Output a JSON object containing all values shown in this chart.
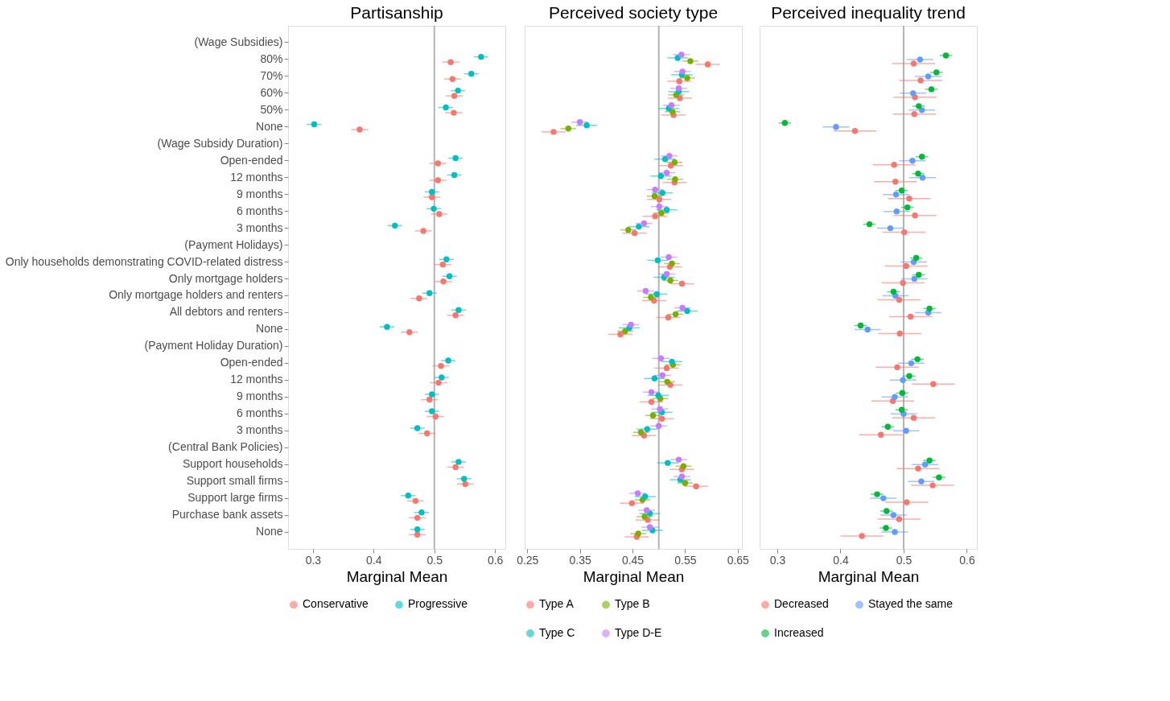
{
  "chart_data": [
    {
      "type": "scatter",
      "title": "Partisanship",
      "xlabel": "Marginal Mean",
      "orientation": "horizontal",
      "categories": [
        "(Wage Subsidies)",
        "80%",
        "70%",
        "60%",
        "50%",
        "None",
        "(Wage Subsidy Duration)",
        "Open-ended",
        "12 months",
        "9 months",
        "6 months",
        "3 months",
        "(Payment Holidays)",
        "Only households demonstrating COVID-related distress",
        "Only mortgage holders",
        "Only mortgage holders and renters",
        "All debtors and renters",
        "None",
        "(Payment Holiday Duration)",
        "Open-ended",
        "12 months",
        "9 months",
        "6 months",
        "3 months",
        "(Central Bank Policies)",
        "Support households",
        "Support small firms",
        "Support large firms",
        "Purchase bank assets",
        "None"
      ],
      "series": [
        {
          "name": "Conservative",
          "color": "#f8766d",
          "values": [
            null,
            0.527,
            0.53,
            0.533,
            0.532,
            0.377,
            null,
            0.506,
            0.506,
            0.496,
            0.508,
            0.482,
            null,
            0.514,
            0.515,
            0.475,
            0.535,
            0.459,
            null,
            0.511,
            0.507,
            0.492,
            0.502,
            0.488,
            null,
            0.535,
            0.551,
            0.469,
            0.472,
            0.472
          ],
          "errors": [
            null,
            0.014,
            0.014,
            0.014,
            0.014,
            0.014,
            null,
            0.014,
            0.014,
            0.014,
            0.014,
            0.014,
            null,
            0.014,
            0.014,
            0.014,
            0.014,
            0.014,
            null,
            0.014,
            0.014,
            0.014,
            0.014,
            0.014,
            null,
            0.014,
            0.014,
            0.014,
            0.014,
            0.014
          ]
        },
        {
          "name": "Progressive",
          "color": "#00bfc4",
          "values": [
            null,
            0.577,
            0.561,
            0.539,
            0.519,
            0.302,
            null,
            0.535,
            0.533,
            0.496,
            0.499,
            0.435,
            null,
            0.52,
            0.525,
            0.492,
            0.54,
            0.422,
            null,
            0.523,
            0.512,
            0.496,
            0.496,
            0.472,
            null,
            0.54,
            0.549,
            0.457,
            0.479,
            0.472
          ],
          "errors": [
            null,
            0.012,
            0.012,
            0.012,
            0.012,
            0.012,
            null,
            0.012,
            0.012,
            0.012,
            0.012,
            0.012,
            null,
            0.012,
            0.012,
            0.012,
            0.012,
            0.012,
            null,
            0.012,
            0.012,
            0.012,
            0.012,
            0.012,
            null,
            0.012,
            0.012,
            0.012,
            0.012,
            0.012
          ]
        }
      ],
      "xlim": [
        0.259,
        0.617
      ],
      "xticks": [
        0.3,
        0.4,
        0.5,
        0.6
      ],
      "ref_lines": [
        {
          "axis": "x",
          "value": 0.5,
          "color": "#b3b3b3"
        }
      ],
      "legend": "bottom"
    },
    {
      "type": "scatter",
      "title": "Perceived society type",
      "xlabel": "Marginal Mean",
      "orientation": "horizontal",
      "series": [
        {
          "name": "Type A",
          "color": "#f8766d",
          "values": [
            null,
            0.593,
            0.539,
            0.54,
            0.528,
            0.3,
            null,
            0.523,
            0.53,
            0.501,
            0.493,
            0.454,
            null,
            0.521,
            0.544,
            0.491,
            0.518,
            0.427,
            null,
            0.515,
            0.522,
            0.486,
            0.506,
            0.472,
            null,
            0.544,
            0.571,
            0.449,
            0.479,
            0.458
          ],
          "errors": [
            null,
            0.023,
            0.023,
            0.023,
            0.023,
            0.023,
            null,
            0.023,
            0.023,
            0.023,
            0.023,
            0.023,
            null,
            0.023,
            0.023,
            0.023,
            0.023,
            0.023,
            null,
            0.023,
            0.023,
            0.023,
            0.023,
            0.023,
            null,
            0.023,
            0.023,
            0.023,
            0.023,
            0.023
          ]
        },
        {
          "name": "Type B",
          "color": "#7cae00",
          "values": [
            null,
            0.56,
            0.554,
            0.533,
            0.526,
            0.328,
            null,
            0.53,
            0.531,
            0.492,
            0.505,
            0.442,
            null,
            0.525,
            0.522,
            0.485,
            0.532,
            0.436,
            null,
            0.527,
            0.516,
            0.503,
            0.489,
            0.466,
            null,
            0.547,
            0.55,
            0.469,
            0.473,
            0.461
          ],
          "errors": [
            null,
            0.015,
            0.015,
            0.015,
            0.015,
            0.015,
            null,
            0.015,
            0.015,
            0.015,
            0.015,
            0.015,
            null,
            0.015,
            0.015,
            0.015,
            0.015,
            0.015,
            null,
            0.015,
            0.015,
            0.015,
            0.015,
            0.015,
            null,
            0.015,
            0.015,
            0.015,
            0.015,
            0.015
          ]
        },
        {
          "name": "Type C",
          "color": "#00bfc4",
          "values": [
            null,
            0.536,
            0.544,
            0.538,
            0.519,
            0.363,
            null,
            0.512,
            0.504,
            0.507,
            0.515,
            0.462,
            null,
            0.498,
            0.51,
            0.496,
            0.554,
            0.444,
            null,
            0.525,
            0.492,
            0.499,
            0.506,
            0.478,
            null,
            0.517,
            0.541,
            0.474,
            0.483,
            0.488
          ],
          "errors": [
            null,
            0.02,
            0.02,
            0.02,
            0.02,
            0.02,
            null,
            0.02,
            0.02,
            0.02,
            0.02,
            0.02,
            null,
            0.02,
            0.02,
            0.02,
            0.02,
            0.02,
            null,
            0.02,
            0.02,
            0.02,
            0.02,
            0.02,
            null,
            0.02,
            0.02,
            0.02,
            0.02,
            0.02
          ]
        },
        {
          "name": "Type D-E",
          "color": "#c77cff",
          "values": [
            null,
            0.543,
            0.545,
            0.538,
            0.524,
            0.35,
            null,
            0.52,
            0.515,
            0.493,
            0.501,
            0.472,
            null,
            0.519,
            0.515,
            0.475,
            0.545,
            0.447,
            null,
            0.504,
            0.507,
            0.486,
            0.502,
            0.5,
            null,
            0.538,
            0.544,
            0.46,
            0.477,
            0.483
          ],
          "errors": [
            null,
            0.016,
            0.016,
            0.016,
            0.016,
            0.016,
            null,
            0.016,
            0.016,
            0.016,
            0.016,
            0.016,
            null,
            0.016,
            0.016,
            0.016,
            0.016,
            0.016,
            null,
            0.016,
            0.016,
            0.016,
            0.016,
            0.016,
            null,
            0.016,
            0.016,
            0.016,
            0.016,
            0.016
          ]
        }
      ],
      "xlim": [
        0.245,
        0.658
      ],
      "xticks": [
        0.25,
        0.35,
        0.45,
        0.55,
        0.65
      ],
      "ref_lines": [
        {
          "axis": "x",
          "value": 0.5,
          "color": "#b3b3b3"
        }
      ],
      "tick_labels": "x",
      "legend": "bottom"
    },
    {
      "type": "scatter",
      "title": "Perceived inequality trend",
      "xlabel": "Marginal Mean",
      "orientation": "horizontal",
      "series": [
        {
          "name": "Decreased",
          "color": "#f8766d",
          "values": [
            null,
            0.516,
            0.527,
            0.518,
            0.517,
            0.423,
            null,
            0.485,
            0.487,
            0.509,
            0.518,
            0.501,
            null,
            0.504,
            0.499,
            0.493,
            0.511,
            0.494,
            null,
            0.49,
            0.547,
            0.483,
            0.516,
            0.464,
            null,
            0.523,
            0.546,
            0.505,
            0.493,
            0.434
          ],
          "errors": [
            null,
            0.034,
            0.034,
            0.034,
            0.034,
            0.034,
            null,
            0.034,
            0.034,
            0.034,
            0.034,
            0.034,
            null,
            0.034,
            0.034,
            0.034,
            0.034,
            0.034,
            null,
            0.034,
            0.034,
            0.034,
            0.034,
            0.034,
            null,
            0.034,
            0.034,
            0.034,
            0.034,
            0.034
          ]
        },
        {
          "name": "Stayed the same",
          "color": "#619cff",
          "values": [
            null,
            0.526,
            0.539,
            0.515,
            0.529,
            0.393,
            null,
            0.514,
            0.53,
            0.488,
            0.489,
            0.479,
            null,
            0.516,
            0.517,
            0.487,
            0.539,
            0.443,
            null,
            0.512,
            0.499,
            0.486,
            0.5,
            0.504,
            null,
            0.534,
            0.528,
            0.468,
            0.484,
            0.486
          ],
          "errors": [
            null,
            0.021,
            0.021,
            0.021,
            0.021,
            0.021,
            null,
            0.021,
            0.021,
            0.021,
            0.021,
            0.021,
            null,
            0.021,
            0.021,
            0.021,
            0.021,
            0.021,
            null,
            0.021,
            0.021,
            0.021,
            0.021,
            0.021,
            null,
            0.021,
            0.021,
            0.021,
            0.021,
            0.021
          ]
        },
        {
          "name": "Increased",
          "color": "#00ba38",
          "values": [
            null,
            0.567,
            0.552,
            0.544,
            0.524,
            0.312,
            null,
            0.529,
            0.523,
            0.497,
            0.506,
            0.446,
            null,
            0.52,
            0.524,
            0.484,
            0.541,
            0.432,
            null,
            0.522,
            0.509,
            0.498,
            0.497,
            0.475,
            null,
            0.541,
            0.556,
            0.458,
            0.473,
            0.472
          ],
          "errors": [
            null,
            0.01,
            0.01,
            0.01,
            0.01,
            0.01,
            null,
            0.01,
            0.01,
            0.01,
            0.01,
            0.01,
            null,
            0.01,
            0.01,
            0.01,
            0.01,
            0.01,
            null,
            0.01,
            0.01,
            0.01,
            0.01,
            0.01,
            null,
            0.01,
            0.01,
            0.01,
            0.01,
            0.01
          ]
        }
      ],
      "xlim": [
        0.272,
        0.616
      ],
      "xticks": [
        0.3,
        0.4,
        0.5,
        0.6
      ],
      "ref_lines": [
        {
          "axis": "x",
          "value": 0.5,
          "color": "#b3b3b3"
        }
      ],
      "tick_labels": "x",
      "legend": "bottom"
    }
  ]
}
